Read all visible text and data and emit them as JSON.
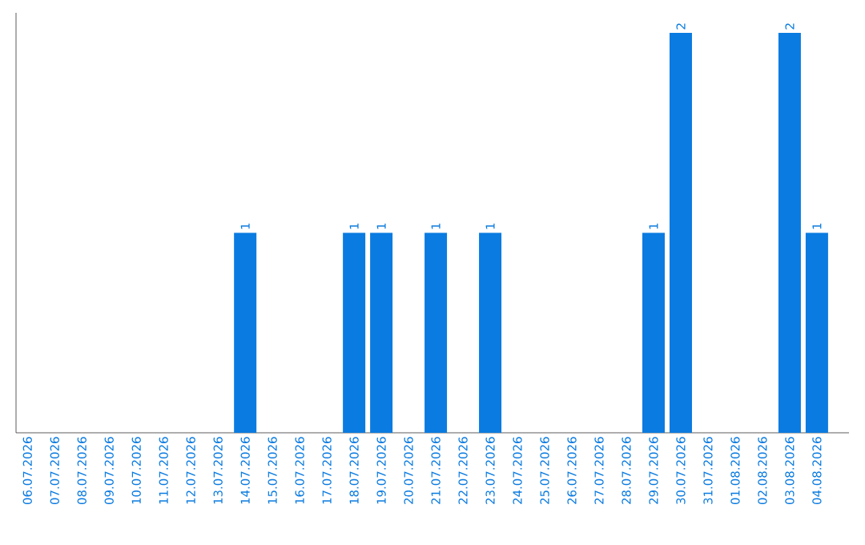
{
  "chart_data": {
    "type": "bar",
    "categories": [
      "06.07.2026",
      "07.07.2026",
      "08.07.2026",
      "09.07.2026",
      "10.07.2026",
      "11.07.2026",
      "12.07.2026",
      "13.07.2026",
      "14.07.2026",
      "15.07.2026",
      "16.07.2026",
      "17.07.2026",
      "18.07.2026",
      "19.07.2026",
      "20.07.2026",
      "21.07.2026",
      "22.07.2026",
      "23.07.2026",
      "24.07.2026",
      "25.07.2026",
      "26.07.2026",
      "27.07.2026",
      "28.07.2026",
      "29.07.2026",
      "30.07.2026",
      "31.07.2026",
      "01.08.2026",
      "02.08.2026",
      "03.08.2026",
      "04.08.2026"
    ],
    "values": [
      0,
      0,
      0,
      0,
      0,
      0,
      0,
      0,
      1,
      0,
      0,
      0,
      1,
      1,
      0,
      1,
      0,
      1,
      0,
      0,
      0,
      0,
      0,
      1,
      2,
      0,
      0,
      0,
      2,
      1
    ],
    "value_labels": [
      null,
      null,
      null,
      null,
      null,
      null,
      null,
      null,
      "1",
      null,
      null,
      null,
      "1",
      "1",
      null,
      "1",
      null,
      "1",
      null,
      null,
      null,
      null,
      null,
      "1",
      "2",
      null,
      null,
      null,
      "2",
      "1"
    ],
    "color": "#0a7be0",
    "ylim": [
      0,
      2.1
    ],
    "tick_labels": "x"
  }
}
